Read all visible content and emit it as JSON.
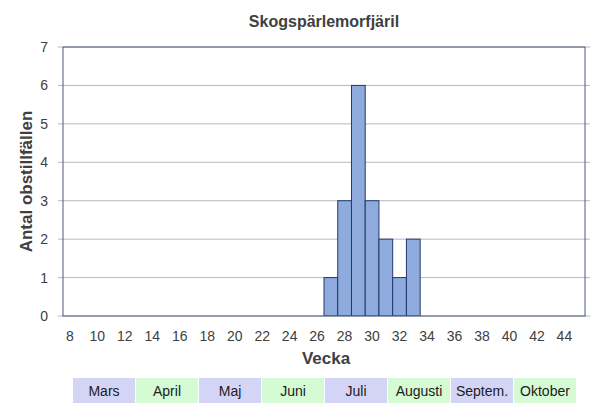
{
  "chart_data": {
    "type": "bar",
    "title": "Skogspärlemorfjäril",
    "x_label": "Vecka",
    "y_label": "Antal obstillfällen",
    "categories": [
      "8",
      null,
      "10",
      null,
      "12",
      null,
      "14",
      null,
      "16",
      null,
      "18",
      null,
      "20",
      null,
      "22",
      null,
      "24",
      null,
      "26",
      null,
      "28",
      null,
      "30",
      null,
      "32",
      null,
      "34",
      null,
      "36",
      null,
      "38",
      null,
      "40",
      null,
      "42",
      null,
      "44",
      null
    ],
    "values": [
      0,
      0,
      0,
      0,
      0,
      0,
      0,
      0,
      0,
      0,
      0,
      0,
      0,
      0,
      0,
      0,
      0,
      0,
      0,
      1,
      3,
      6,
      3,
      2,
      1,
      2,
      0,
      0,
      0,
      0,
      0,
      0,
      0,
      0,
      0,
      0,
      0,
      0
    ],
    "color": "#8faadc",
    "ylim": [
      0,
      7
    ],
    "yticks": [
      0,
      1,
      2,
      3,
      4,
      5,
      6,
      7
    ],
    "grid": true,
    "annotations": [
      "Mars",
      "April",
      "Maj",
      "Juni",
      "Juli",
      "Augusti",
      "Septem.",
      "Oktober"
    ]
  }
}
